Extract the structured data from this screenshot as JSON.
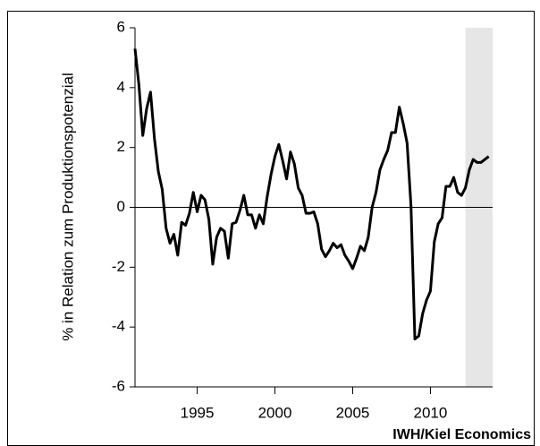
{
  "chart_data": {
    "type": "line",
    "y_label": "% in Relation zum Produktionspotenzial",
    "source": "IWH/Kiel Economics",
    "xlim": [
      1991,
      2014
    ],
    "xticks": [
      1995,
      2000,
      2005,
      2010
    ],
    "ylim": [
      -6,
      6
    ],
    "yticks": [
      -6,
      -4,
      -2,
      0,
      2,
      4,
      6
    ],
    "zero_line": true,
    "shaded_range": [
      2012.25,
      2014
    ],
    "shade_color": "#e6e6e6",
    "x": [
      1991,
      1991.25,
      1991.5,
      1991.75,
      1992,
      1992.25,
      1992.5,
      1992.75,
      1993,
      1993.25,
      1993.5,
      1993.75,
      1994,
      1994.25,
      1994.5,
      1994.75,
      1995,
      1995.25,
      1995.5,
      1995.75,
      1996,
      1996.25,
      1996.5,
      1996.75,
      1997,
      1997.25,
      1997.5,
      1997.75,
      1998,
      1998.25,
      1998.5,
      1998.75,
      1999,
      1999.25,
      1999.5,
      1999.75,
      2000,
      2000.25,
      2000.5,
      2000.75,
      2001,
      2001.25,
      2001.5,
      2001.75,
      2002,
      2002.25,
      2002.5,
      2002.75,
      2003,
      2003.25,
      2003.5,
      2003.75,
      2004,
      2004.25,
      2004.5,
      2004.75,
      2005,
      2005.25,
      2005.5,
      2005.75,
      2006,
      2006.25,
      2006.5,
      2006.75,
      2007,
      2007.25,
      2007.5,
      2007.75,
      2008,
      2008.25,
      2008.5,
      2008.75,
      2009,
      2009.25,
      2009.5,
      2009.75,
      2010,
      2010.25,
      2010.5,
      2010.75,
      2011,
      2011.25,
      2011.5,
      2011.75,
      2012,
      2012.25,
      2012.5,
      2012.75,
      2013,
      2013.25,
      2013.5,
      2013.75
    ],
    "series": [
      {
        "color": "#000000",
        "values": [
          5.3,
          4.1,
          2.4,
          3.3,
          3.85,
          2.3,
          1.2,
          0.6,
          -0.7,
          -1.2,
          -0.9,
          -1.6,
          -0.5,
          -0.6,
          -0.2,
          0.5,
          -0.15,
          0.4,
          0.25,
          -0.4,
          -1.9,
          -1.0,
          -0.7,
          -0.8,
          -1.7,
          -0.55,
          -0.5,
          -0.1,
          0.4,
          -0.25,
          -0.25,
          -0.7,
          -0.25,
          -0.55,
          0.35,
          1.1,
          1.7,
          2.1,
          1.55,
          0.95,
          1.85,
          1.45,
          0.65,
          0.4,
          -0.2,
          -0.2,
          -0.15,
          -0.55,
          -1.4,
          -1.65,
          -1.45,
          -1.2,
          -1.35,
          -1.25,
          -1.6,
          -1.8,
          -2.05,
          -1.7,
          -1.3,
          -1.45,
          -1.0,
          0.0,
          0.5,
          1.25,
          1.6,
          1.9,
          2.5,
          2.5,
          3.35,
          2.8,
          2.15,
          0.05,
          -4.4,
          -4.3,
          -3.55,
          -3.1,
          -2.8,
          -1.15,
          -0.55,
          -0.35,
          0.7,
          0.7,
          1.0,
          0.5,
          0.4,
          0.65,
          1.25,
          1.6,
          1.5,
          1.5,
          1.6,
          1.7
        ]
      }
    ]
  }
}
